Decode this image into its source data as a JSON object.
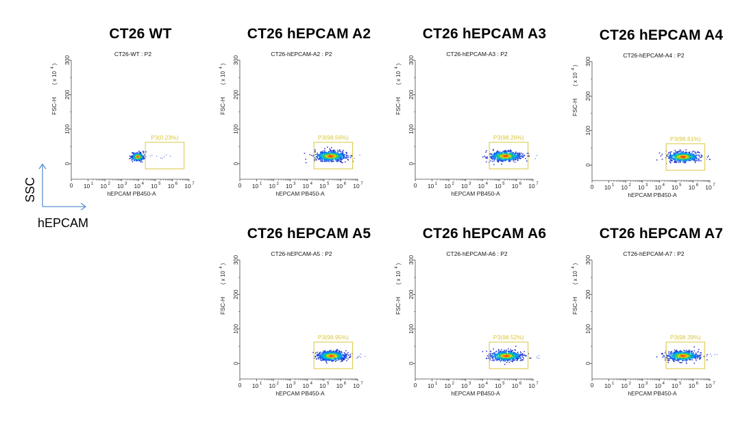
{
  "colors": {
    "gate": "#d9c63a",
    "gate_label": "#d9c63a",
    "arrow": "#5b8fd0",
    "axis": "#444444"
  },
  "axis_guide": {
    "y_label": "SSC",
    "x_label": "hEPCAM"
  },
  "chart_data": [
    {
      "type": "scatter",
      "panel_title": "CT26  WT",
      "plot_header": "CT26-WT : P2",
      "xlabel": "hEPCAM PB450-A",
      "ylabel": "FSC-H",
      "y_multiplier": "( x 10",
      "y_multiplier_exp": "4",
      "y_multiplier_close": ")",
      "yticks": [
        0,
        100,
        200,
        300
      ],
      "xtick_base": "10",
      "xtick_exps": [
        "1",
        "2",
        "3",
        "4",
        "5",
        "6",
        "7"
      ],
      "xtick_zero": "0",
      "gate": {
        "name": "P3",
        "label": "P3(0.23%)",
        "x_range_log": [
          4.4,
          6.7
        ],
        "y_range": [
          -15,
          62
        ]
      },
      "population": {
        "center_log_x": 3.95,
        "center_y": 20,
        "spread_log_x": 0.18,
        "spread_y": 6,
        "count": 320
      }
    },
    {
      "type": "scatter",
      "panel_title": "CT26 hEPCAM A2",
      "plot_header": "CT26-hEPCAM-A2 : P2",
      "xlabel": "hEPCAM PB450-A",
      "ylabel": "FSC-H",
      "y_multiplier": "( x 10",
      "y_multiplier_exp": "4",
      "y_multiplier_close": ")",
      "yticks": [
        0,
        100,
        200,
        300
      ],
      "xtick_base": "10",
      "xtick_exps": [
        "1",
        "2",
        "3",
        "4",
        "5",
        "6",
        "7"
      ],
      "xtick_zero": "0",
      "gate": {
        "name": "P3",
        "label": "P3(98.56%)",
        "x_range_log": [
          4.4,
          6.7
        ],
        "y_range": [
          -15,
          62
        ]
      },
      "population": {
        "center_log_x": 5.4,
        "center_y": 22,
        "spread_log_x": 0.45,
        "spread_y": 7,
        "count": 700
      }
    },
    {
      "type": "scatter",
      "panel_title": "CT26 hEPCAM A3",
      "plot_header": "CT26-hEPCAM-A3 : P2",
      "xlabel": "hEPCAM PB450-A",
      "ylabel": "FSC-H",
      "y_multiplier": "( x 10",
      "y_multiplier_exp": "4",
      "y_multiplier_close": ")",
      "yticks": [
        0,
        100,
        200,
        300
      ],
      "xtick_base": "10",
      "xtick_exps": [
        "1",
        "2",
        "3",
        "4",
        "5",
        "6",
        "7"
      ],
      "xtick_zero": "0",
      "gate": {
        "name": "P3",
        "label": "P3(98.26%)",
        "x_range_log": [
          4.4,
          6.7
        ],
        "y_range": [
          -15,
          62
        ]
      },
      "population": {
        "center_log_x": 5.35,
        "center_y": 22,
        "spread_log_x": 0.45,
        "spread_y": 7,
        "count": 700
      }
    },
    {
      "type": "scatter",
      "panel_title": "CT26 hEPCAM A4",
      "plot_header": "CT26-hEPCAM-A4 : P2",
      "xlabel": "hEPCAM PB450-A",
      "ylabel": "FSC-H",
      "y_multiplier": "( x 10",
      "y_multiplier_exp": "4",
      "y_multiplier_close": ")",
      "yticks": [
        0,
        100,
        200,
        300
      ],
      "xtick_base": "10",
      "xtick_exps": [
        "1",
        "2",
        "3",
        "4",
        "5",
        "6",
        "7"
      ],
      "xtick_zero": "0",
      "gate": {
        "name": "P3",
        "label": "P3(98.61%)",
        "x_range_log": [
          4.4,
          6.7
        ],
        "y_range": [
          -15,
          62
        ]
      },
      "population": {
        "center_log_x": 5.4,
        "center_y": 24,
        "spread_log_x": 0.45,
        "spread_y": 7,
        "count": 700
      }
    },
    {
      "type": "scatter",
      "panel_title": "CT26 hEPCAM A5",
      "plot_header": "CT26-hEPCAM-A5 : P2",
      "xlabel": "hEPCAM PB450-A",
      "ylabel": "FSC-H",
      "y_multiplier": "( x 10",
      "y_multiplier_exp": "4",
      "y_multiplier_close": ")",
      "yticks": [
        0,
        100,
        200,
        300
      ],
      "xtick_base": "10",
      "xtick_exps": [
        "1",
        "2",
        "3",
        "4",
        "5",
        "6",
        "7"
      ],
      "xtick_zero": "0",
      "gate": {
        "name": "P3",
        "label": "P3(98.95%)",
        "x_range_log": [
          4.4,
          6.7
        ],
        "y_range": [
          -15,
          62
        ]
      },
      "population": {
        "center_log_x": 5.45,
        "center_y": 22,
        "spread_log_x": 0.4,
        "spread_y": 7,
        "count": 700
      }
    },
    {
      "type": "scatter",
      "panel_title": "CT26 hEPCAM A6",
      "plot_header": "CT26-hEPCAM-A6 : P2",
      "xlabel": "hEPCAM PB450-A",
      "ylabel": "FSC-H",
      "y_multiplier": "( x 10",
      "y_multiplier_exp": "4",
      "y_multiplier_close": ")",
      "yticks": [
        0,
        100,
        200,
        300
      ],
      "xtick_base": "10",
      "xtick_exps": [
        "1",
        "2",
        "3",
        "4",
        "5",
        "6",
        "7"
      ],
      "xtick_zero": "0",
      "gate": {
        "name": "P3",
        "label": "P3(98.52%)",
        "x_range_log": [
          4.4,
          6.7
        ],
        "y_range": [
          -15,
          62
        ]
      },
      "population": {
        "center_log_x": 5.4,
        "center_y": 22,
        "spread_log_x": 0.45,
        "spread_y": 7,
        "count": 700
      }
    },
    {
      "type": "scatter",
      "panel_title": "CT26 hEPCAM A7",
      "plot_header": "CT26-hEPCAM-A7 : P2",
      "xlabel": "hEPCAM PB450-A",
      "ylabel": "FSC-H",
      "y_multiplier": "( x 10",
      "y_multiplier_exp": "4",
      "y_multiplier_close": ")",
      "yticks": [
        0,
        100,
        200,
        300
      ],
      "xtick_base": "10",
      "xtick_exps": [
        "1",
        "2",
        "3",
        "4",
        "5",
        "6",
        "7"
      ],
      "xtick_zero": "0",
      "gate": {
        "name": "P3",
        "label": "P3(98.39%)",
        "x_range_log": [
          4.4,
          6.7
        ],
        "y_range": [
          -15,
          62
        ]
      },
      "population": {
        "center_log_x": 5.4,
        "center_y": 22,
        "spread_log_x": 0.45,
        "spread_y": 7,
        "count": 700
      }
    }
  ]
}
